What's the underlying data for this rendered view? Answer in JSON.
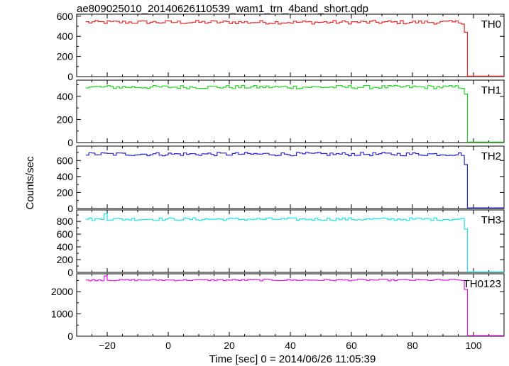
{
  "chart_data": {
    "type": "line",
    "title": "ae809025010_20140626110539_wam1_trn_4band_short.qdp",
    "xlabel": "Time [sec] 0 = 2014/06/26 11:05:39",
    "ylabel": "Counts/sec",
    "xlim": [
      -30,
      110
    ],
    "xticks": [
      -20,
      0,
      20,
      40,
      60,
      80,
      100
    ],
    "xtick_labels": [
      "−20",
      "0",
      "20",
      "40",
      "60",
      "80",
      "100"
    ],
    "bin_width": 1,
    "grid": false,
    "legend": "none",
    "panels": [
      {
        "name": "TH0",
        "color": "#e8282a",
        "ylim": [
          0,
          620
        ],
        "yticks": [
          0,
          200,
          400,
          600
        ],
        "yticks_labels": [
          "0",
          "200",
          "400",
          "600"
        ],
        "level": 540,
        "noise": 18,
        "step": {
          "x": 97,
          "value": 440
        },
        "after": {
          "x": 98,
          "value": 5
        },
        "spikes": []
      },
      {
        "name": "TH1",
        "color": "#28d428",
        "ylim": [
          0,
          540
        ],
        "yticks": [
          0,
          200,
          400
        ],
        "yticks_labels": [
          "0",
          "200",
          "400"
        ],
        "level": 480,
        "noise": 15,
        "step": {
          "x": 97,
          "value": 420
        },
        "after": {
          "x": 98,
          "value": 5
        },
        "spikes": []
      },
      {
        "name": "TH2",
        "color": "#2828d0",
        "ylim": [
          0,
          780
        ],
        "yticks": [
          0,
          200,
          400,
          600
        ],
        "yticks_labels": [
          "0",
          "200",
          "400",
          "600"
        ],
        "level": 680,
        "noise": 22,
        "step": {
          "x": 97,
          "value": 550
        },
        "after": {
          "x": 98,
          "value": 8
        },
        "spikes": []
      },
      {
        "name": "TH3",
        "color": "#20e0e8",
        "ylim": [
          0,
          980
        ],
        "yticks": [
          0,
          200,
          400,
          600,
          800
        ],
        "yticks_labels": [
          "0",
          "200",
          "400",
          "600",
          "800"
        ],
        "level": 835,
        "noise": 22,
        "step": {
          "x": 97,
          "value": 680
        },
        "after": {
          "x": 98,
          "value": 8
        },
        "spikes": [
          {
            "x": -21,
            "value": 920
          }
        ]
      },
      {
        "name": "TH0123",
        "color": "#e020e0",
        "ylim": [
          0,
          2800
        ],
        "yticks": [
          0,
          1000,
          2000
        ],
        "yticks_labels": [
          "0",
          "1000",
          "2000"
        ],
        "level": 2520,
        "noise": 35,
        "step": {
          "x": 97,
          "value": 2100
        },
        "after": {
          "x": 98,
          "value": 30
        },
        "spikes": [
          {
            "x": -21,
            "value": 2700
          }
        ]
      }
    ]
  }
}
